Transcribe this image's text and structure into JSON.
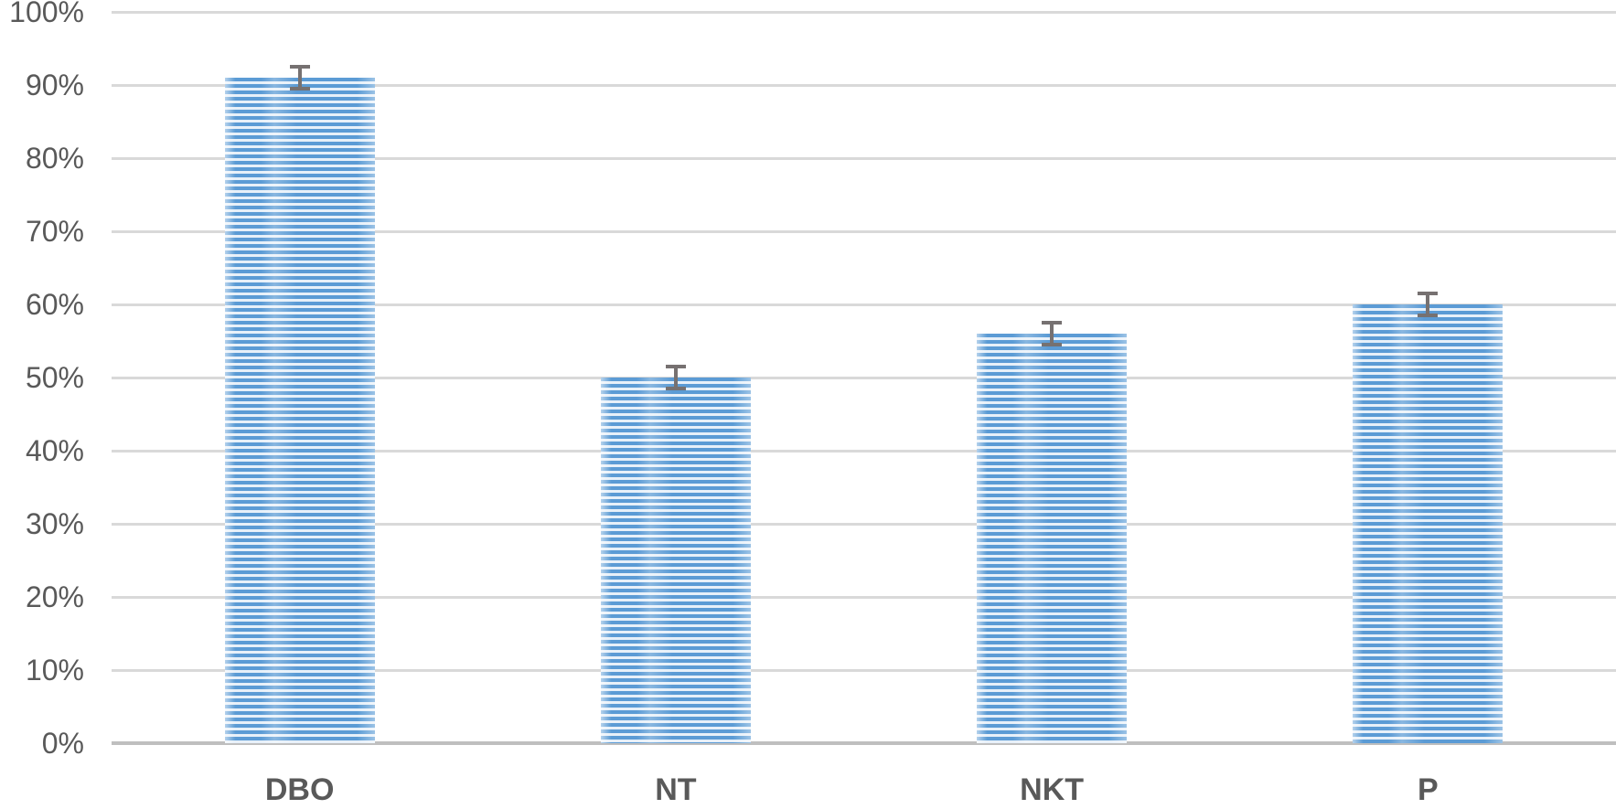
{
  "chart_data": {
    "type": "bar",
    "title": "",
    "xlabel": "",
    "ylabel": "",
    "categories": [
      "DBO",
      "NT",
      "NKT",
      "P"
    ],
    "values": [
      91,
      50,
      56,
      60
    ],
    "error_bars": [
      1.2,
      1.2,
      1.3,
      1.2
    ],
    "ylim": [
      0,
      100
    ],
    "ytick_step": 10,
    "ytick_labels": [
      "0%",
      "10%",
      "20%",
      "30%",
      "40%",
      "50%",
      "60%",
      "70%",
      "80%",
      "90%",
      "100%"
    ],
    "grid": true,
    "legend": false,
    "colors": {
      "bar_stripe": "#5B9BD5",
      "bar_stripe_background": "#E7F0F9",
      "error_bar": "#767171",
      "gridline": "#D9D9D9",
      "axis_baseline": "#BFBFBF",
      "tick_label": "#595959"
    },
    "bar_pattern": "light-horizontal-stripes"
  }
}
